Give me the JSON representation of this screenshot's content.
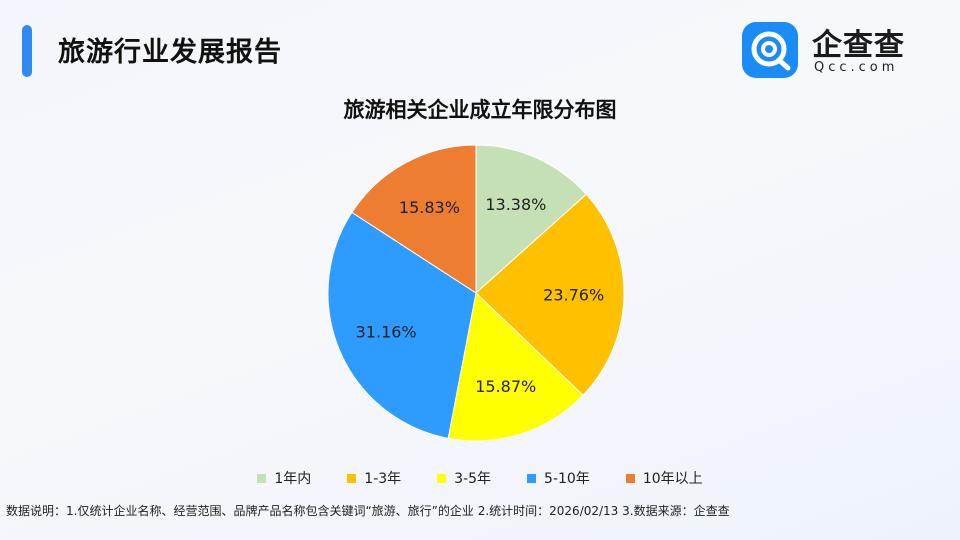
{
  "header": {
    "title": "旅游行业发展报告"
  },
  "logo": {
    "name": "企查查",
    "domain": "Qcc.com",
    "icon": "qcc-logo-icon",
    "color": "#1b8cf6"
  },
  "chart_data": {
    "type": "pie",
    "title": "旅游相关企业成立年限分布图",
    "categories": [
      "1年内",
      "1-3年",
      "3-5年",
      "5-10年",
      "10年以上"
    ],
    "values": [
      13.38,
      23.76,
      15.87,
      31.16,
      15.83
    ],
    "value_labels": [
      "13.38%",
      "23.76%",
      "15.87%",
      "31.16%",
      "15.83%"
    ],
    "colors": [
      "#c5e0b4",
      "#ffc000",
      "#ffff00",
      "#2e9bff",
      "#ed7d31"
    ],
    "legend_position": "bottom"
  },
  "footer": {
    "note": "数据说明：1.仅统计企业名称、经营范围、品牌产品名称包含关键词“旅游、旅行”的企业   2.统计时间：2026/02/13    3.数据来源：企查查"
  }
}
